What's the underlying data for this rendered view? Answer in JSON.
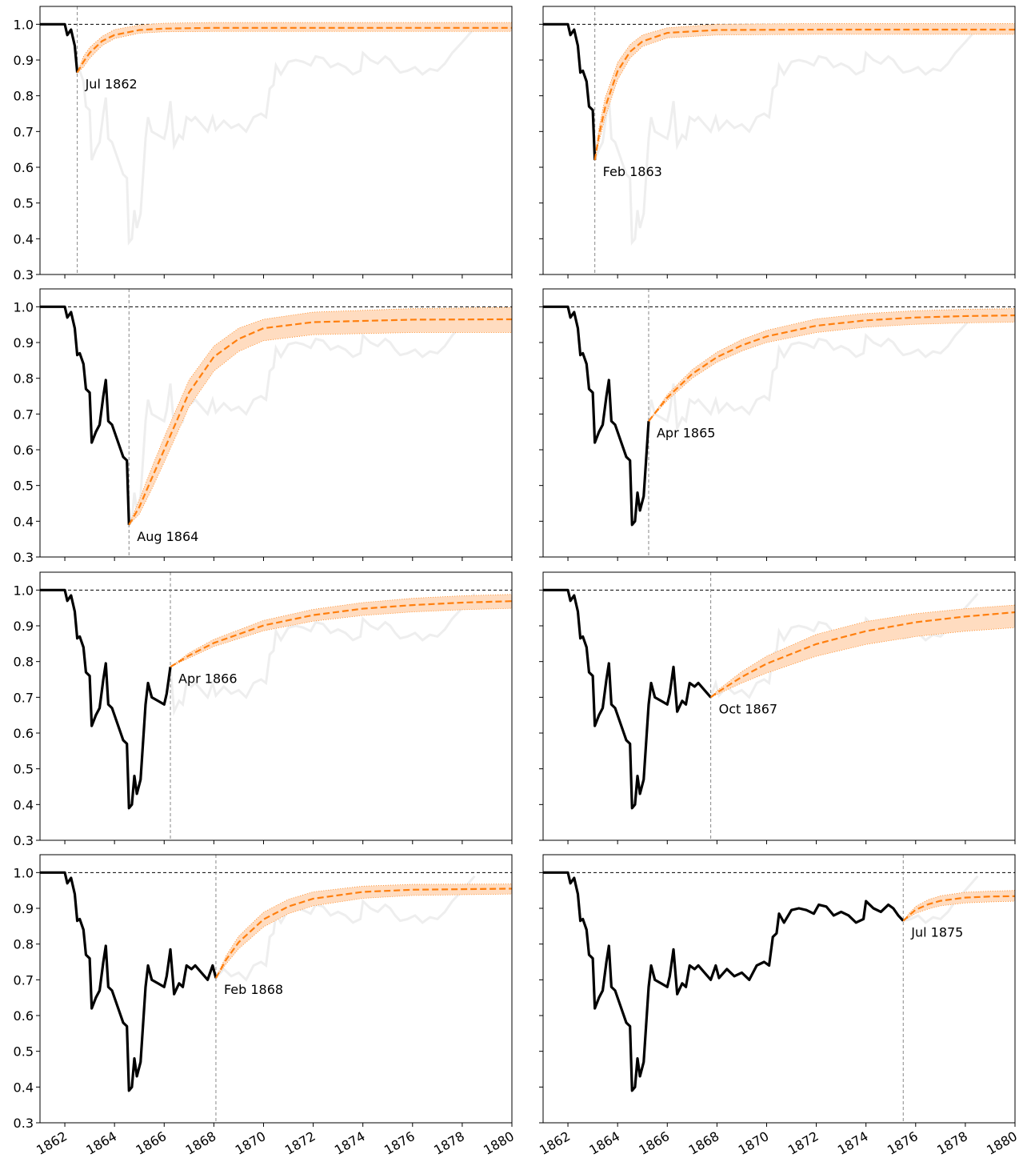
{
  "chart_data": {
    "type": "line",
    "xlim": [
      1861,
      1880
    ],
    "ylim": [
      0.3,
      1.05
    ],
    "xticks": [
      1862,
      1864,
      1866,
      1868,
      1870,
      1872,
      1874,
      1876,
      1878,
      1880
    ],
    "yticks": [
      0.3,
      0.4,
      0.5,
      0.6,
      0.7,
      0.8,
      0.9,
      {
        "value": 1,
        "label": "1.0"
      }
    ],
    "hline": 1,
    "x": [
      1861,
      1862,
      1862.1,
      1862.25,
      1862.4,
      1862.5,
      1862.6,
      1862.75,
      1862.85,
      1863,
      1863.083,
      1863.25,
      1863.4,
      1863.55,
      1863.65,
      1863.75,
      1863.9,
      1864.1,
      1864.25,
      1864.35,
      1864.5,
      1864.583,
      1864.7,
      1864.8,
      1864.9,
      1865.05,
      1865.25,
      1865.35,
      1865.5,
      1865.75,
      1866,
      1866.1,
      1866.25,
      1866.4,
      1866.6,
      1866.75,
      1866.9,
      1867.1,
      1867.25,
      1867.5,
      1867.75,
      1867.95,
      1868.083,
      1868.4,
      1868.7,
      1869,
      1869.3,
      1869.6,
      1869.9,
      1870.1,
      1870.25,
      1870.4,
      1870.5,
      1870.7,
      1871,
      1871.3,
      1871.6,
      1871.9,
      1872.1,
      1872.4,
      1872.7,
      1873,
      1873.3,
      1873.6,
      1873.9,
      1874,
      1874.3,
      1874.6,
      1874.9,
      1875.1,
      1875.3,
      1875.5,
      1875.8,
      1876.1,
      1876.4,
      1876.7,
      1877,
      1877.3,
      1877.6,
      1878,
      1878.5
    ],
    "series": [
      {
        "color": "#000000",
        "context_color": "#eeeeee",
        "values": [
          1,
          1,
          0.97,
          0.985,
          0.94,
          0.865,
          0.87,
          0.84,
          0.77,
          0.76,
          0.62,
          0.65,
          0.67,
          0.75,
          0.795,
          0.68,
          0.67,
          0.63,
          0.6,
          0.58,
          0.57,
          0.39,
          0.4,
          0.48,
          0.43,
          0.47,
          0.68,
          0.74,
          0.7,
          0.69,
          0.68,
          0.71,
          0.785,
          0.66,
          0.69,
          0.68,
          0.74,
          0.73,
          0.74,
          0.72,
          0.7,
          0.74,
          0.705,
          0.73,
          0.71,
          0.72,
          0.7,
          0.74,
          0.75,
          0.74,
          0.82,
          0.83,
          0.885,
          0.86,
          0.895,
          0.9,
          0.895,
          0.885,
          0.91,
          0.905,
          0.88,
          0.89,
          0.88,
          0.86,
          0.87,
          0.92,
          0.9,
          0.89,
          0.91,
          0.9,
          0.88,
          0.865,
          0.87,
          0.88,
          0.86,
          0.875,
          0.87,
          0.89,
          0.92,
          0.95,
          0.99
        ]
      }
    ],
    "forecast_color": "#ff7f0e",
    "band_color": "#ffdcc0",
    "panels": [
      {
        "vline": 1862.5,
        "annotation": "Jul 1862",
        "forecast": {
          "x": [
            1862.5,
            1862.75,
            1863,
            1863.5,
            1864,
            1865,
            1866,
            1868,
            1872,
            1880
          ],
          "values": [
            0.865,
            0.895,
            0.92,
            0.953,
            0.97,
            0.984,
            0.988,
            0.99,
            0.99,
            0.99
          ],
          "lower": [
            0.865,
            0.88,
            0.905,
            0.94,
            0.96,
            0.975,
            0.979,
            0.98,
            0.98,
            0.98
          ],
          "upper": [
            0.865,
            0.91,
            0.935,
            0.966,
            0.985,
            0.998,
            1.003,
            1.005,
            1.005,
            1.005
          ]
        }
      },
      {
        "vline": 1863.083,
        "annotation": "Feb 1863",
        "forecast": {
          "x": [
            1863.083,
            1863.25,
            1863.5,
            1864,
            1864.5,
            1865,
            1866,
            1868,
            1872,
            1880
          ],
          "values": [
            0.62,
            0.69,
            0.768,
            0.869,
            0.923,
            0.952,
            0.976,
            0.984,
            0.985,
            0.985
          ],
          "lower": [
            0.62,
            0.67,
            0.74,
            0.845,
            0.905,
            0.938,
            0.962,
            0.97,
            0.972,
            0.972
          ],
          "upper": [
            0.62,
            0.71,
            0.795,
            0.893,
            0.943,
            0.97,
            0.99,
            1,
            1.002,
            1.002
          ]
        }
      },
      {
        "vline": 1864.583,
        "annotation": "Aug 1864",
        "forecast": {
          "x": [
            1864.583,
            1865,
            1865.5,
            1866,
            1867,
            1868,
            1869,
            1870,
            1872,
            1876,
            1880
          ],
          "values": [
            0.39,
            0.44,
            0.52,
            0.6,
            0.76,
            0.86,
            0.91,
            0.94,
            0.957,
            0.964,
            0.965
          ],
          "lower": [
            0.39,
            0.42,
            0.49,
            0.565,
            0.72,
            0.82,
            0.875,
            0.905,
            0.922,
            0.928,
            0.928
          ],
          "upper": [
            0.39,
            0.46,
            0.55,
            0.635,
            0.795,
            0.89,
            0.94,
            0.965,
            0.985,
            0.995,
            0.998
          ]
        }
      },
      {
        "vline": 1865.25,
        "annotation": "Apr 1865",
        "forecast": {
          "x": [
            1865.25,
            1866,
            1867,
            1868,
            1869,
            1870,
            1872,
            1874,
            1876,
            1878,
            1880
          ],
          "values": [
            0.68,
            0.746,
            0.812,
            0.859,
            0.892,
            0.917,
            0.947,
            0.962,
            0.97,
            0.974,
            0.976
          ],
          "lower": [
            0.68,
            0.738,
            0.8,
            0.845,
            0.876,
            0.9,
            0.928,
            0.943,
            0.951,
            0.955,
            0.957
          ],
          "upper": [
            0.68,
            0.754,
            0.824,
            0.873,
            0.908,
            0.934,
            0.966,
            0.981,
            0.989,
            0.993,
            0.995
          ]
        }
      },
      {
        "vline": 1866.25,
        "annotation": "Apr 1866",
        "forecast": {
          "x": [
            1866.25,
            1867,
            1868,
            1870,
            1872,
            1874,
            1876,
            1878,
            1880
          ],
          "values": [
            0.785,
            0.817,
            0.852,
            0.901,
            0.93,
            0.948,
            0.958,
            0.965,
            0.969
          ],
          "lower": [
            0.785,
            0.81,
            0.842,
            0.886,
            0.913,
            0.929,
            0.939,
            0.945,
            0.949
          ],
          "upper": [
            0.785,
            0.824,
            0.862,
            0.915,
            0.946,
            0.965,
            0.977,
            0.984,
            0.988
          ]
        }
      },
      {
        "vline": 1867.75,
        "annotation": "Oct 1867",
        "forecast": {
          "x": [
            1867.75,
            1868,
            1869,
            1870,
            1872,
            1874,
            1876,
            1878,
            1880
          ],
          "values": [
            0.7,
            0.713,
            0.757,
            0.794,
            0.849,
            0.885,
            0.91,
            0.926,
            0.938
          ],
          "lower": [
            0.7,
            0.708,
            0.74,
            0.768,
            0.815,
            0.848,
            0.87,
            0.885,
            0.895
          ],
          "upper": [
            0.7,
            0.718,
            0.772,
            0.815,
            0.876,
            0.912,
            0.934,
            0.948,
            0.958
          ]
        }
      },
      {
        "vline": 1868.083,
        "annotation": "Feb 1868",
        "forecast": {
          "x": [
            1868.083,
            1868.5,
            1869,
            1870,
            1871,
            1872,
            1874,
            1876,
            1880
          ],
          "values": [
            0.705,
            0.757,
            0.805,
            0.869,
            0.905,
            0.927,
            0.946,
            0.952,
            0.955
          ],
          "lower": [
            0.705,
            0.745,
            0.787,
            0.848,
            0.885,
            0.907,
            0.928,
            0.936,
            0.94
          ],
          "upper": [
            0.705,
            0.768,
            0.822,
            0.889,
            0.925,
            0.946,
            0.962,
            0.967,
            0.968
          ]
        }
      },
      {
        "vline": 1875.5,
        "annotation": "Jul 1875",
        "forecast": {
          "x": [
            1875.5,
            1875.75,
            1876,
            1876.5,
            1877,
            1878,
            1879,
            1880
          ],
          "values": [
            0.865,
            0.881,
            0.896,
            0.911,
            0.921,
            0.93,
            0.933,
            0.934
          ],
          "lower": [
            0.865,
            0.875,
            0.886,
            0.898,
            0.907,
            0.915,
            0.918,
            0.92
          ],
          "upper": [
            0.865,
            0.887,
            0.905,
            0.924,
            0.935,
            0.945,
            0.948,
            0.95
          ]
        }
      }
    ]
  }
}
